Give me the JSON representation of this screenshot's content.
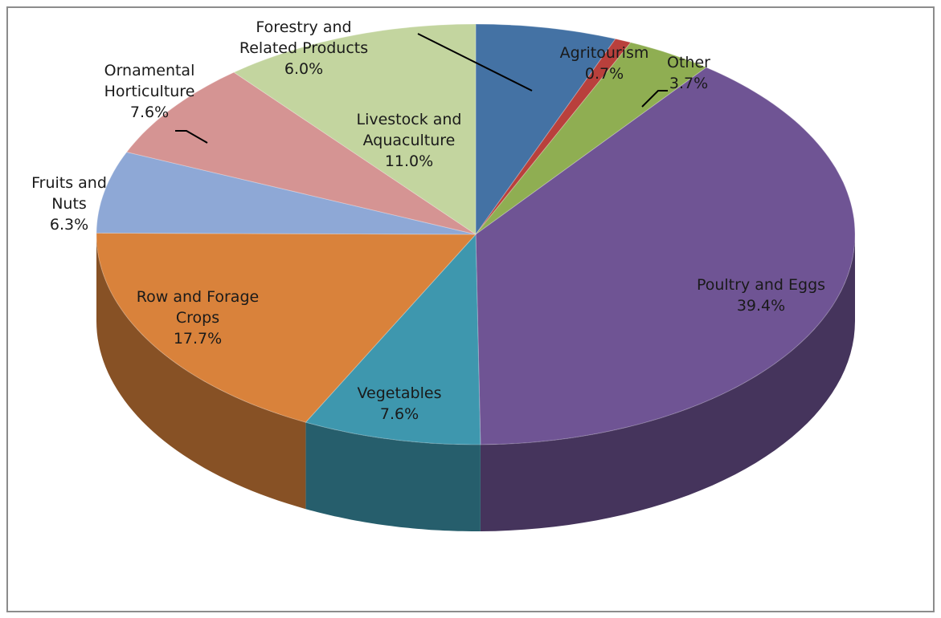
{
  "chart_data": {
    "type": "pie",
    "title": "",
    "slices": [
      {
        "label": [
          "Forestry and",
          "Related Products"
        ],
        "pct_text": "6.0%",
        "value": 6.0,
        "color": "#4472a4"
      },
      {
        "label": [
          "Agritourism"
        ],
        "pct_text": "0.7%",
        "value": 0.7,
        "color": "#b9403c"
      },
      {
        "label": [
          "Other"
        ],
        "pct_text": "3.7%",
        "value": 3.7,
        "color": "#8fae52"
      },
      {
        "label": [
          "Poultry and Eggs"
        ],
        "pct_text": "39.4%",
        "value": 39.4,
        "color": "#6f5494"
      },
      {
        "label": [
          "Vegetables"
        ],
        "pct_text": "7.6%",
        "value": 7.6,
        "color": "#3e97ae"
      },
      {
        "label": [
          "Row and Forage",
          "Crops"
        ],
        "pct_text": "17.7%",
        "value": 17.7,
        "color": "#d9823b"
      },
      {
        "label": [
          "Fruits and",
          "Nuts"
        ],
        "pct_text": "6.3%",
        "value": 6.3,
        "color": "#8ea8d6"
      },
      {
        "label": [
          "Ornamental",
          "Horticulture"
        ],
        "pct_text": "7.6%",
        "value": 7.6,
        "color": "#d59493"
      },
      {
        "label": [
          "Livestock and",
          "Aquaculture"
        ],
        "pct_text": "11.0%",
        "value": 11.0,
        "color": "#c3d59f"
      }
    ]
  }
}
